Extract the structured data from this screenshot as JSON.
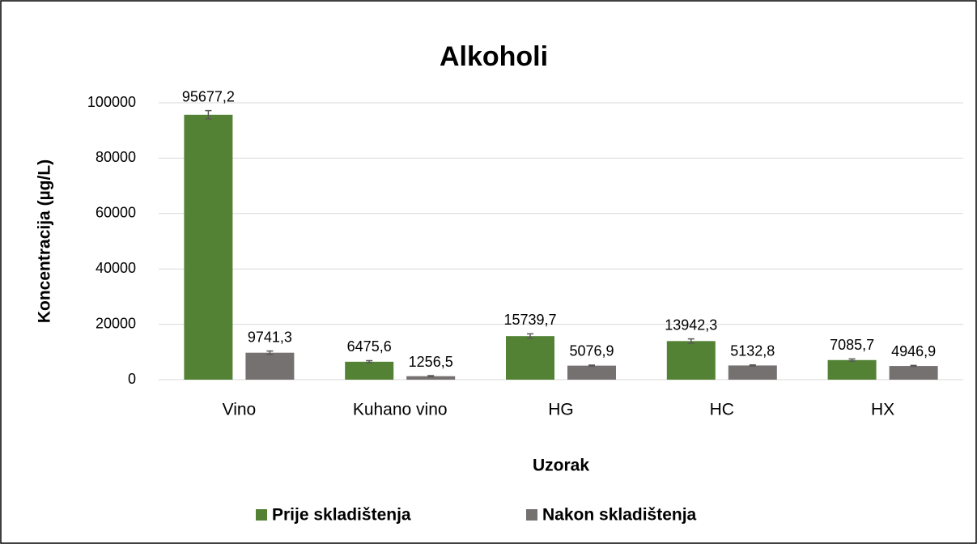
{
  "chart_data": {
    "type": "bar",
    "title": "Alkoholi",
    "x_label": "Uzorak",
    "y_label": "Koncentracija (µg/L)",
    "categories": [
      "Vino",
      "Kuhano vino",
      "HG",
      "HC",
      "HX"
    ],
    "series": [
      {
        "name": "Prije skladištenja",
        "color": "#548235",
        "values": [
          95677.2,
          6475.6,
          15739.7,
          13942.3,
          7085.7
        ],
        "value_labels": [
          "95677,2",
          "6475,6",
          "15739,7",
          "13942,3",
          "7085,7"
        ],
        "errors": [
          1500,
          400,
          800,
          800,
          400
        ]
      },
      {
        "name": "Nakon skladištenja",
        "color": "#767171",
        "values": [
          9741.3,
          1256.5,
          5076.9,
          5132.8,
          4946.9
        ],
        "value_labels": [
          "9741,3",
          "1256,5",
          "5076,9",
          "5132,8",
          "4946,9"
        ],
        "errors": [
          600,
          200,
          200,
          200,
          200
        ]
      }
    ],
    "ylim": [
      0,
      100000
    ],
    "yticks": [
      0,
      20000,
      40000,
      60000,
      80000,
      100000
    ],
    "grid": true,
    "legend": "bottom"
  }
}
